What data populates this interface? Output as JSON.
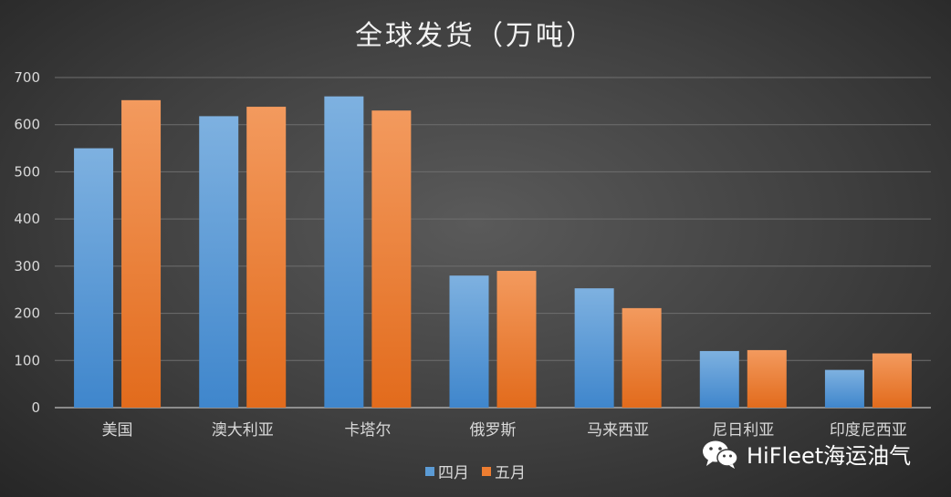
{
  "chart_data": {
    "type": "bar",
    "title": "全球发货（万吨）",
    "categories": [
      "美国",
      "澳大利亚",
      "卡塔尔",
      "俄罗斯",
      "马来西亚",
      "尼日利亚",
      "印度尼西亚"
    ],
    "series": [
      {
        "name": "四月",
        "values": [
          550,
          618,
          660,
          280,
          253,
          120,
          80
        ],
        "color": "#5b9bd5"
      },
      {
        "name": "五月",
        "values": [
          652,
          638,
          630,
          290,
          211,
          122,
          115
        ],
        "color": "#ed7d31"
      }
    ],
    "ylim": [
      0,
      700
    ],
    "yticks": [
      0,
      100,
      200,
      300,
      400,
      500,
      600,
      700
    ],
    "grid": true,
    "legend": "bottom"
  },
  "watermark": {
    "text": "HiFleet海运油气",
    "icon": "wechat-icon"
  }
}
